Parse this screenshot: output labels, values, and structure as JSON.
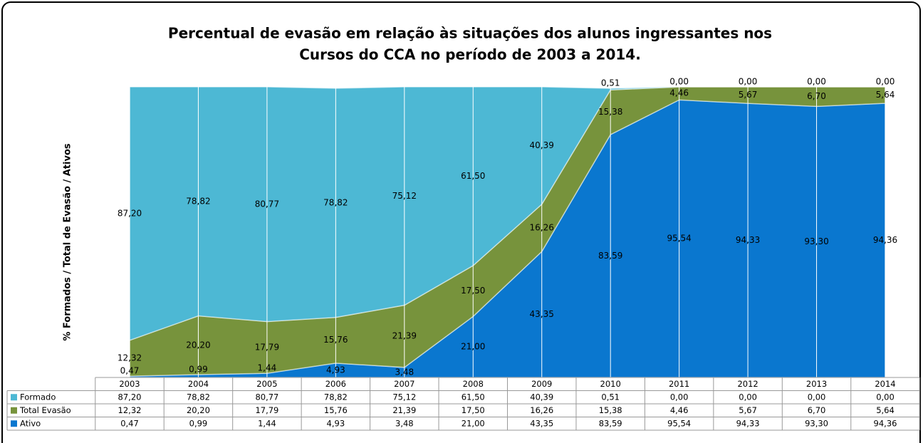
{
  "chart_data": {
    "type": "stacked-area",
    "title": "Percentual de evasão em relação às situações dos alunos ingressantes nos",
    "subtitle": "Cursos do CCA no período de 2003 a 2014.",
    "y_label": "% Formados / Total de Evasão / Ativos",
    "categories": [
      "2003",
      "2004",
      "2005",
      "2006",
      "2007",
      "2008",
      "2009",
      "2010",
      "2011",
      "2012",
      "2013",
      "2014"
    ],
    "ylim": [
      0,
      100
    ],
    "series": [
      {
        "name": "Formado",
        "color": "#4db8d4",
        "values": [
          87.2,
          78.82,
          80.77,
          78.82,
          75.12,
          61.5,
          40.39,
          0.51,
          0.0,
          0.0,
          0.0,
          0.0
        ],
        "value_labels": [
          "87,20",
          "78,82",
          "80,77",
          "78,82",
          "75,12",
          "61,50",
          "40,39",
          "0,51",
          "0,00",
          "0,00",
          "0,00",
          "0,00"
        ]
      },
      {
        "name": "Total Evasão",
        "color": "#77933c",
        "values": [
          12.32,
          20.2,
          17.79,
          15.76,
          21.39,
          17.5,
          16.26,
          15.38,
          4.46,
          5.67,
          6.7,
          5.64
        ],
        "value_labels": [
          "12,32",
          "20,20",
          "17,79",
          "15,76",
          "21,39",
          "17,50",
          "16,26",
          "15,38",
          "4,46",
          "5,67",
          "6,70",
          "5,64"
        ]
      },
      {
        "name": "Ativo",
        "color": "#0a77cf",
        "values": [
          0.47,
          0.99,
          1.44,
          4.93,
          3.48,
          21.0,
          43.35,
          83.59,
          95.54,
          94.33,
          93.3,
          94.36
        ],
        "value_labels": [
          "0,47",
          "0,99",
          "1,44",
          "4,93",
          "3,48",
          "21,00",
          "43,35",
          "83,59",
          "95,54",
          "94,33",
          "93,30",
          "94,36"
        ]
      }
    ]
  }
}
